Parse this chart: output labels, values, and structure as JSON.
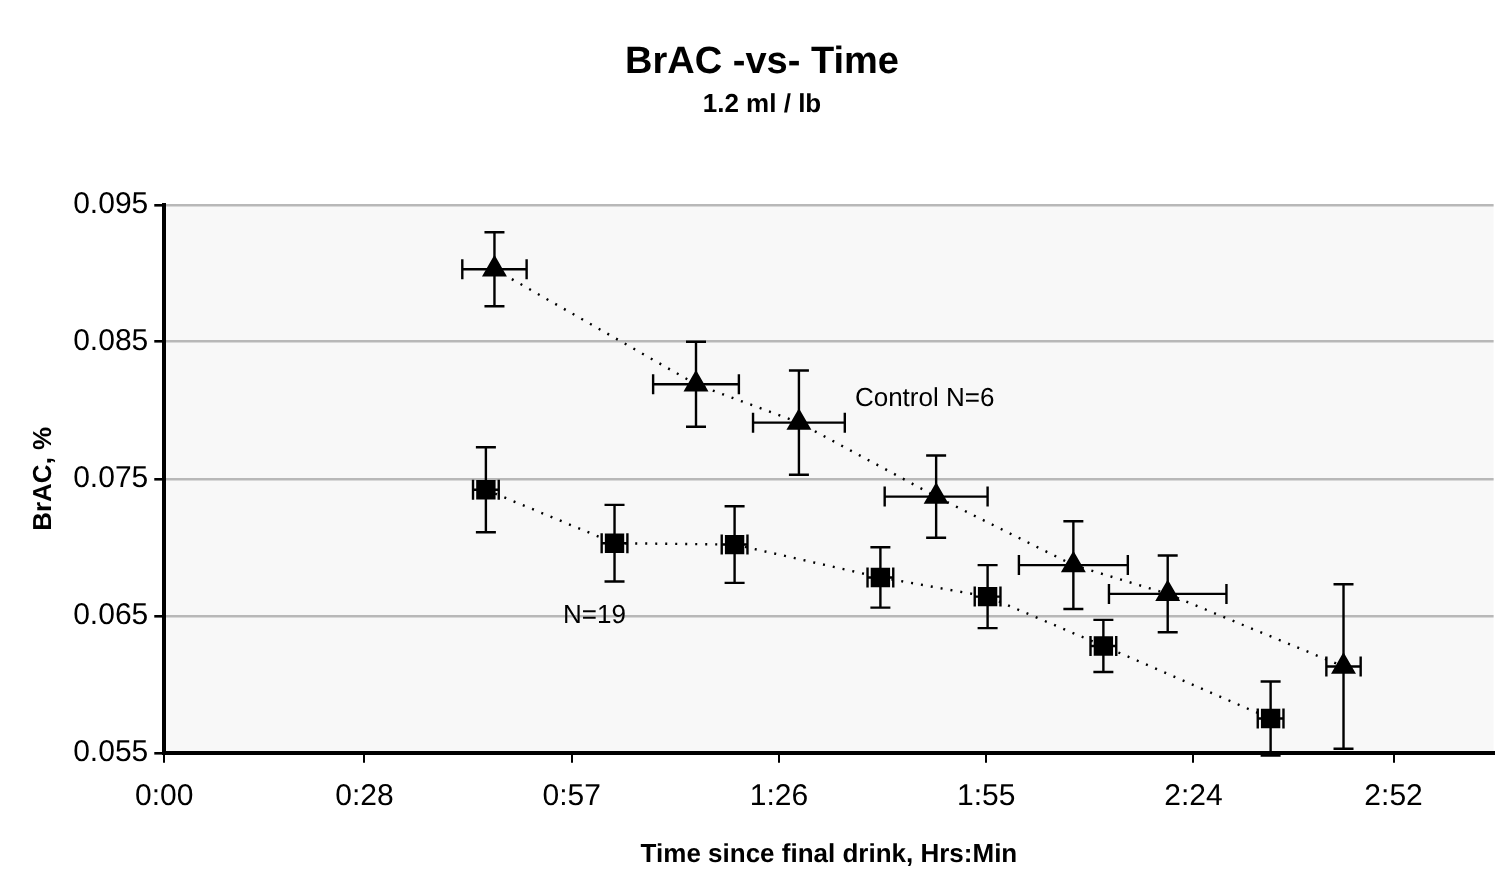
{
  "chart_data": {
    "type": "line",
    "title": "BrAC -vs- Time",
    "subtitle": "1.2 ml / lb",
    "xlabel": "Time since final drink, Hrs:Min",
    "ylabel": "BrAC, %",
    "xlim": [
      0,
      3.1
    ],
    "xticks": [
      {
        "value": 0,
        "label": "0:00"
      },
      {
        "value": 0.4667,
        "label": "0:28"
      },
      {
        "value": 0.95,
        "label": "0:57"
      },
      {
        "value": 1.4333,
        "label": "1:26"
      },
      {
        "value": 1.9167,
        "label": "1:55"
      },
      {
        "value": 2.4,
        "label": "2:24"
      },
      {
        "value": 2.8667,
        "label": "2:52"
      }
    ],
    "ylim": [
      0.055,
      0.095
    ],
    "yticks": [
      0.055,
      0.065,
      0.075,
      0.085,
      0.095
    ],
    "grid": "y",
    "legend": false,
    "line_style": "dotted",
    "series": [
      {
        "name": "Control N=6",
        "color": "#000000",
        "marker": "triangle",
        "x": [
          0.77,
          1.24,
          1.48,
          1.8,
          2.12,
          2.34,
          2.75
        ],
        "values": [
          0.0903,
          0.0819,
          0.0791,
          0.0737,
          0.0687,
          0.0666,
          0.0613
        ],
        "errors": [
          0.0027,
          0.0031,
          0.0038,
          0.003,
          0.0032,
          0.0028,
          0.006
        ],
        "xerrors": [
          0.075,
          0.1,
          0.107,
          0.12,
          0.127,
          0.137,
          0.04
        ]
      },
      {
        "name": "N=19",
        "color": "#000000",
        "marker": "square",
        "x": [
          0.75,
          1.05,
          1.33,
          1.67,
          1.92,
          2.19,
          2.58
        ],
        "values": [
          0.0742,
          0.0703,
          0.0702,
          0.0678,
          0.0664,
          0.0628,
          0.0575
        ],
        "errors": [
          0.0031,
          0.0028,
          0.0028,
          0.0022,
          0.0023,
          0.0019,
          0.0027
        ],
        "xerrors": [
          0.03,
          0.03,
          0.03,
          0.03,
          0.03,
          0.03,
          0.03
        ]
      }
    ]
  }
}
